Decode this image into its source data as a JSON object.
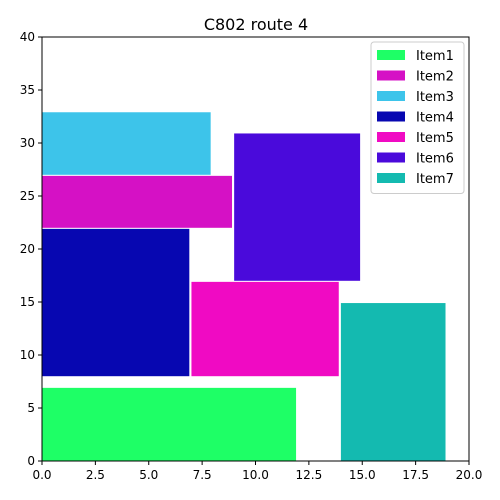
{
  "chart_data": {
    "type": "rect-packing",
    "title": "C802 route 4",
    "xlim": [
      0,
      20
    ],
    "ylim": [
      0,
      40
    ],
    "x_ticks": [
      0,
      2.5,
      5,
      7.5,
      10,
      12.5,
      15,
      17.5,
      20
    ],
    "x_tick_labels": [
      "0.0",
      "2.5",
      "5.0",
      "7.5",
      "10.0",
      "12.5",
      "15.0",
      "17.5",
      "20.0"
    ],
    "y_ticks": [
      0,
      5,
      10,
      15,
      20,
      25,
      30,
      35,
      40
    ],
    "y_tick_labels": [
      "0",
      "5",
      "10",
      "15",
      "20",
      "25",
      "30",
      "35",
      "40"
    ],
    "grid": false,
    "legend_position": "top-right",
    "items": [
      {
        "name": "Item1",
        "color": "#1eff66",
        "x0": 0,
        "y0": 0,
        "x1": 11.9,
        "y1": 6.9
      },
      {
        "name": "Item2",
        "color": "#d511c5",
        "x0": 0,
        "y0": 22,
        "x1": 8.9,
        "y1": 26.9
      },
      {
        "name": "Item3",
        "color": "#3dc4ea",
        "x0": 0,
        "y0": 27,
        "x1": 7.9,
        "y1": 32.9
      },
      {
        "name": "Item4",
        "color": "#0707b1",
        "x0": 0,
        "y0": 8,
        "x1": 6.9,
        "y1": 21.9
      },
      {
        "name": "Item5",
        "color": "#f00ac3",
        "x0": 7,
        "y0": 8,
        "x1": 13.9,
        "y1": 16.9
      },
      {
        "name": "Item6",
        "color": "#4a0adb",
        "x0": 9,
        "y0": 17,
        "x1": 14.9,
        "y1": 30.9
      },
      {
        "name": "Item7",
        "color": "#14bab0",
        "x0": 14,
        "y0": 0,
        "x1": 18.9,
        "y1": 14.9
      }
    ]
  }
}
